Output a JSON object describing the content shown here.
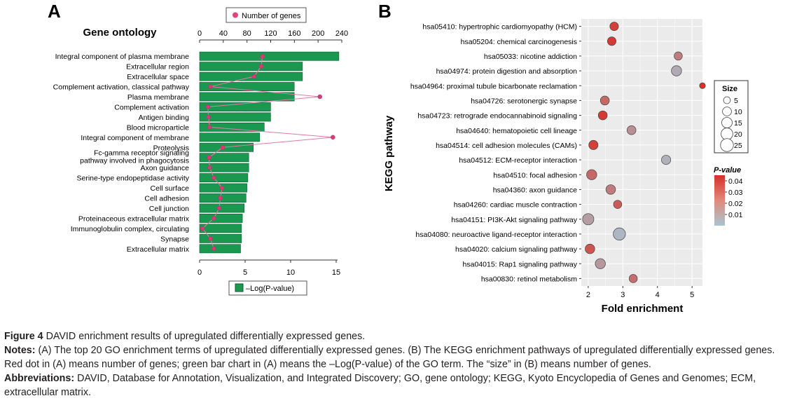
{
  "panel_a": {
    "letter": "A",
    "title": "Gene ontology",
    "legend_dot": "Number of genes",
    "legend_bar": "–Log(P-value)",
    "top_ticks": [
      "0",
      "40",
      "80",
      "120",
      "160",
      "200",
      "240"
    ],
    "bottom_ticks": [
      "0",
      "5",
      "10",
      "15"
    ]
  },
  "panel_b": {
    "letter": "B",
    "xlabel": "Fold enrichment",
    "ylabel": "KEGG pathway",
    "x_ticks": [
      "2",
      "3",
      "4",
      "5"
    ],
    "size_legend": {
      "title": "Size",
      "items": [
        "5",
        "10",
        "15",
        "20",
        "25"
      ]
    },
    "pvalue_legend": {
      "title": "P-value",
      "ticks": [
        "0.04",
        "0.03",
        "0.02",
        "0.01"
      ]
    }
  },
  "chart_data": [
    {
      "type": "bar",
      "title": "Gene ontology",
      "orientation": "horizontal",
      "categories": [
        "Integral component of plasma membrane",
        "Extracellular region",
        "Extracellular space",
        "Complement activation, classical pathway",
        "Plasma membrane",
        "Complement activation",
        "Antigen binding",
        "Blood microparticle",
        "Integral component of membrane",
        "Proteolysis",
        "Fc-gamma receptor signaling pathway involved in phagocytosis",
        "Axon guidance",
        "Serine-type endopeptidase activity",
        "Cell surface",
        "Cell adhesion",
        "Cell junction",
        "Proteinaceous extracellular matrix",
        "Immunoglobulin complex, circulating",
        "Synapse",
        "Extracellular matrix"
      ],
      "series": [
        {
          "name": "–Log(P-value)",
          "axis": "bottom",
          "values": [
            15.3,
            11.3,
            11.3,
            10.4,
            10.4,
            7.8,
            7.8,
            7.1,
            6.6,
            5.9,
            5.4,
            5.4,
            5.3,
            5.2,
            5.1,
            4.9,
            4.7,
            4.6,
            4.6,
            4.5
          ]
        },
        {
          "name": "Number of genes",
          "axis": "top",
          "values": [
            106,
            104,
            92,
            18,
            203,
            14,
            15,
            17,
            225,
            39,
            16,
            17,
            24,
            38,
            35,
            33,
            24,
            5,
            18,
            24
          ]
        }
      ],
      "xlim_bottom": [
        0,
        15
      ],
      "xlim_top": [
        0,
        240
      ],
      "colors": {
        "bar": "#1a9850",
        "bar_stroke": "#105a30",
        "dot": "#d63c7a",
        "line": "#e07aa8"
      }
    },
    {
      "type": "scatter",
      "xlabel": "Fold enrichment",
      "ylabel": "KEGG pathway",
      "xlim": [
        1.8,
        5.3
      ],
      "categories": [
        "hsa05410: hypertrophic cardiomyopathy (HCM)",
        "hsa05204: chemical carcinogenesis",
        "hsa05033: nicotine addiction",
        "hsa04974: protein digestion and absorption",
        "hsa04964: proximal tubule bicarbonate reclamation",
        "hsa04726: serotonergic synapse",
        "hsa04723: retrograde endocannabinoid signaling",
        "hsa04640: hematopoietic cell lineage",
        "hsa04514: cell adhesion molecules (CAMs)",
        "hsa04512: ECM-receptor interaction",
        "hsa04510: focal adhesion",
        "hsa04360: axon guidance",
        "hsa04260: cardiac muscle contraction",
        "hsa04151: PI3K-Akt signaling pathway",
        "hsa04080: neuroactive ligand-receptor interaction",
        "hsa04020: calcium signaling pathway",
        "hsa04015: Rap1 signaling pathway",
        "hsa00830: retinol metabolism"
      ],
      "x": [
        2.75,
        2.68,
        4.6,
        4.55,
        5.3,
        2.48,
        2.42,
        3.25,
        2.15,
        4.25,
        2.1,
        2.65,
        2.85,
        2.0,
        2.9,
        2.05,
        2.35,
        3.3
      ],
      "size": [
        9,
        9,
        8,
        14,
        3,
        10,
        10,
        10,
        11,
        11,
        14,
        12,
        8,
        18,
        22,
        12,
        14,
        8
      ],
      "pvalue": [
        0.04,
        0.042,
        0.022,
        0.008,
        0.044,
        0.028,
        0.042,
        0.016,
        0.04,
        0.006,
        0.028,
        0.022,
        0.032,
        0.012,
        0.004,
        0.034,
        0.014,
        0.026
      ],
      "color_scale": {
        "low": "#a9c4d2",
        "high": "#d73027",
        "min": 0.0,
        "max": 0.045
      }
    }
  ],
  "caption": {
    "figure_label": "Figure 4",
    "figure_text": " DAVID enrichment results of upregulated differentially expressed genes.",
    "notes_label": "Notes:",
    "notes_text": " (A) The top 20 GO enrichment terms of upregulated differentially expressed genes. (B) The KEGG enrichment pathways of upregulated differentially expressed genes. Red dot in (A) means number of genes; green bar chart in (A) means the –Log(P-value) of the GO term. The “size” in (B) means number of genes.",
    "abbrev_label": "Abbreviations:",
    "abbrev_text": " DAVID, Database for Annotation, Visualization, and Integrated Discovery; GO, gene ontology; KEGG, Kyoto Encyclopedia of Genes and Genomes; ECM, extracellular matrix."
  }
}
